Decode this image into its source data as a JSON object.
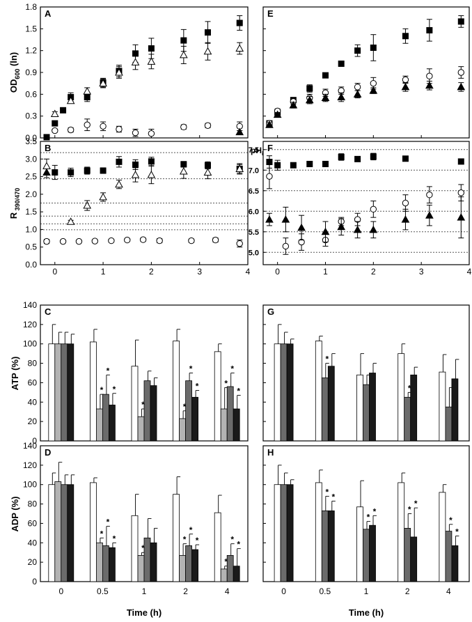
{
  "chart_data": [
    {
      "id": "A",
      "type": "scatter",
      "panel_label": "A",
      "ylabel": "OD600 (ln)",
      "ylim": [
        0,
        1.8
      ],
      "xlim": [
        -0.3,
        4
      ],
      "yticks": [
        "0.0",
        "0.3",
        "0.6",
        "0.9",
        "1.2",
        "1.5",
        "1.8"
      ],
      "series": [
        {
          "name": "filled square",
          "marker": "square",
          "filled": true,
          "x": [
            -0.17,
            0,
            0.17,
            0.33,
            0.67,
            1,
            1.33,
            1.67,
            2,
            2.67,
            3.17,
            3.83
          ],
          "y": [
            0.01,
            0.2,
            0.38,
            0.56,
            0.56,
            0.76,
            0.92,
            1.16,
            1.23,
            1.34,
            1.45,
            1.58
          ],
          "err": [
            0.01,
            0.02,
            0.03,
            0.06,
            0.06,
            0.06,
            0.08,
            0.12,
            0.14,
            0.15,
            0.15,
            0.1
          ]
        },
        {
          "name": "open triangle",
          "marker": "triangle",
          "filled": false,
          "x": [
            0,
            0.33,
            0.67,
            1,
            1.33,
            1.67,
            2,
            2.67,
            3.17,
            3.83
          ],
          "y": [
            0.33,
            0.51,
            0.64,
            0.75,
            0.9,
            1.04,
            1.05,
            1.14,
            1.19,
            1.23
          ],
          "err": [
            0.03,
            0.03,
            0.05,
            0.06,
            0.08,
            0.1,
            0.1,
            0.12,
            0.12,
            0.08
          ]
        },
        {
          "name": "open circle",
          "marker": "circle",
          "filled": false,
          "x": [
            0,
            0.33,
            0.67,
            1,
            1.33,
            1.67,
            2,
            2.67,
            3.17,
            3.83
          ],
          "y": [
            0.1,
            0.11,
            0.18,
            0.16,
            0.12,
            0.07,
            0.06,
            0.15,
            0.17,
            0.16
          ],
          "err": [
            0.02,
            0.03,
            0.08,
            0.06,
            0.04,
            0.05,
            0.06,
            0.03,
            0.03,
            0.06
          ]
        },
        {
          "name": "filled triangle",
          "marker": "triangle",
          "filled": true,
          "x": [
            3.83
          ],
          "y": [
            0.08
          ],
          "err": [
            0.02
          ]
        }
      ]
    },
    {
      "id": "E",
      "type": "scatter",
      "panel_label": "E",
      "ylabel": "",
      "ylim": [
        0,
        1.8
      ],
      "xlim": [
        -0.3,
        4
      ],
      "yticks": [
        "",
        "",
        "",
        "",
        "",
        "",
        ""
      ],
      "series": [
        {
          "name": "filled square",
          "marker": "square",
          "filled": true,
          "x": [
            -0.17,
            0,
            0.33,
            0.67,
            1,
            1.33,
            1.67,
            2,
            2.67,
            3.17,
            3.83
          ],
          "y": [
            0.2,
            0.35,
            0.52,
            0.68,
            0.86,
            1.02,
            1.2,
            1.24,
            1.4,
            1.48,
            1.6
          ],
          "err": [
            0.03,
            0.03,
            0.03,
            0.05,
            0.03,
            0.03,
            0.08,
            0.18,
            0.1,
            0.15,
            0.08
          ]
        },
        {
          "name": "open circle",
          "marker": "circle",
          "filled": false,
          "x": [
            -0.17,
            0,
            0.33,
            0.67,
            1,
            1.33,
            1.67,
            2,
            2.67,
            3.17,
            3.83
          ],
          "y": [
            0.2,
            0.37,
            0.5,
            0.55,
            0.62,
            0.65,
            0.7,
            0.75,
            0.8,
            0.85,
            0.9
          ],
          "err": [
            0.03,
            0.03,
            0.04,
            0.05,
            0.05,
            0.05,
            0.05,
            0.08,
            0.05,
            0.1,
            0.08
          ]
        },
        {
          "name": "filled triangle",
          "marker": "triangle",
          "filled": true,
          "x": [
            -0.17,
            0,
            0.33,
            0.67,
            1,
            1.33,
            1.67,
            2,
            2.67,
            3.17,
            3.83
          ],
          "y": [
            0.18,
            0.32,
            0.45,
            0.52,
            0.55,
            0.56,
            0.6,
            0.65,
            0.7,
            0.72,
            0.7
          ],
          "err": [
            0.03,
            0.03,
            0.04,
            0.05,
            0.05,
            0.06,
            0.05,
            0.04,
            0.06,
            0.06,
            0.06
          ]
        }
      ]
    },
    {
      "id": "B",
      "type": "scatter",
      "panel_label": "B",
      "ylabel": "R 390/470",
      "ylim": [
        0,
        3.5
      ],
      "xlim": [
        -0.3,
        4
      ],
      "yticks": [
        "0.0",
        "0.5",
        "1.0",
        "1.5",
        "2.0",
        "2.5",
        "3.0",
        "3.5"
      ],
      "xticks": [
        "0",
        "1",
        "2",
        "3",
        "4"
      ],
      "ref_lines": [
        3.18,
        2.44,
        1.75,
        1.38,
        1.16,
        0.99
      ],
      "series": [
        {
          "name": "filled square",
          "marker": "square",
          "filled": true,
          "x": [
            0,
            0.33,
            0.67,
            1,
            1.33,
            1.67,
            2,
            2.67,
            3.17,
            3.83
          ],
          "y": [
            2.62,
            2.62,
            2.67,
            2.67,
            2.92,
            2.84,
            2.93,
            2.85,
            2.82,
            2.72
          ],
          "err": [
            0.2,
            0.12,
            0.1,
            0.08,
            0.15,
            0.14,
            0.12,
            0.08,
            0.1,
            0.12
          ]
        },
        {
          "name": "filled triangle",
          "marker": "triangle",
          "filled": true,
          "x": [
            -0.17
          ],
          "y": [
            2.62
          ],
          "err": [
            0.15
          ]
        },
        {
          "name": "open triangle",
          "marker": "triangle",
          "filled": false,
          "x": [
            -0.17,
            0.33,
            0.67,
            1,
            1.33,
            1.67,
            2,
            2.67,
            3.17,
            3.83
          ],
          "y": [
            2.8,
            1.22,
            1.68,
            1.92,
            2.28,
            2.55,
            2.55,
            2.65,
            2.62,
            2.72
          ],
          "err": [
            0.2,
            0.04,
            0.14,
            0.12,
            0.12,
            0.2,
            0.25,
            0.2,
            0.18,
            0.15
          ]
        },
        {
          "name": "open circle",
          "marker": "circle",
          "filled": false,
          "x": [
            -0.17,
            0.17,
            0.5,
            0.83,
            1.17,
            1.5,
            1.83,
            2.17,
            2.83,
            3.33,
            3.83
          ],
          "y": [
            0.66,
            0.66,
            0.66,
            0.67,
            0.68,
            0.7,
            0.71,
            0.68,
            0.68,
            0.7,
            0.6
          ],
          "err": [
            0.06,
            0.04,
            0.04,
            0.04,
            0.04,
            0.04,
            0.05,
            0.06,
            0.05,
            0.06,
            0.1
          ]
        }
      ]
    },
    {
      "id": "F",
      "type": "scatter",
      "panel_label": "F",
      "ylabel": "pHi",
      "ylim": [
        4.7,
        7.7
      ],
      "xlim": [
        -0.3,
        4
      ],
      "yticks_labels": [
        "5.0",
        "5.5",
        "6.0",
        "6.5",
        "7.0",
        "7.5"
      ],
      "yticks_values": [
        5.0,
        5.5,
        6.0,
        6.5,
        7.0,
        7.5
      ],
      "xticks": [
        "0",
        "1",
        "2",
        "3",
        "4"
      ],
      "series": [
        {
          "name": "filled square",
          "marker": "square",
          "filled": true,
          "x": [
            -0.17,
            0,
            0.33,
            0.67,
            1,
            1.33,
            1.67,
            2,
            2.67,
            3.83
          ],
          "y": [
            7.2,
            7.12,
            7.12,
            7.15,
            7.15,
            7.32,
            7.27,
            7.33,
            7.28,
            7.21
          ],
          "err": [
            0.15,
            0.12,
            0.06,
            0.06,
            0.06,
            0.08,
            0.05,
            0.08,
            0.04,
            0.04
          ]
        },
        {
          "name": "open circle",
          "marker": "circle",
          "filled": false,
          "x": [
            -0.17,
            0.17,
            0.5,
            1,
            1.33,
            1.67,
            2,
            2.67,
            3.17,
            3.83
          ],
          "y": [
            6.85,
            5.15,
            5.25,
            5.3,
            5.75,
            5.8,
            6.05,
            6.2,
            6.4,
            6.45
          ],
          "err": [
            0.3,
            0.2,
            0.2,
            0.15,
            0.1,
            0.15,
            0.2,
            0.2,
            0.2,
            0.2
          ]
        },
        {
          "name": "filled triangle",
          "marker": "triangle",
          "filled": true,
          "x": [
            -0.17,
            0.17,
            0.5,
            1,
            1.33,
            1.67,
            2,
            2.67,
            3.17,
            3.83
          ],
          "y": [
            5.8,
            5.8,
            5.6,
            5.5,
            5.62,
            5.55,
            5.55,
            5.8,
            5.9,
            5.85
          ],
          "err": [
            0.15,
            0.3,
            0.3,
            0.25,
            0.2,
            0.2,
            0.2,
            0.25,
            0.25,
            0.5
          ]
        }
      ]
    },
    {
      "id": "C",
      "type": "bar",
      "panel_label": "C",
      "ylabel": "ATP (%)",
      "ylim": [
        0,
        140
      ],
      "yticks": [
        "0",
        "20",
        "40",
        "60",
        "80",
        "100",
        "120",
        "140"
      ],
      "categories": [
        "0",
        "0.5",
        "1",
        "2",
        "4"
      ],
      "series": [
        {
          "name": "white",
          "values": [
            100,
            102,
            77,
            103,
            92
          ],
          "err": [
            20,
            13,
            27,
            12,
            8
          ],
          "sig": [
            false,
            false,
            false,
            false,
            false
          ]
        },
        {
          "name": "light gray",
          "values": [
            100,
            33,
            25,
            23,
            33
          ],
          "err": [
            12,
            15,
            8,
            8,
            22
          ],
          "sig": [
            false,
            true,
            true,
            true,
            true
          ]
        },
        {
          "name": "dark gray",
          "values": [
            100,
            48,
            62,
            62,
            56
          ],
          "err": [
            12,
            20,
            10,
            8,
            14
          ],
          "sig": [
            false,
            true,
            false,
            true,
            true
          ]
        },
        {
          "name": "black",
          "values": [
            100,
            37,
            57,
            45,
            33
          ],
          "err": [
            10,
            12,
            8,
            7,
            14
          ],
          "sig": [
            false,
            true,
            false,
            true,
            true
          ]
        }
      ]
    },
    {
      "id": "G",
      "type": "bar",
      "panel_label": "G",
      "ylabel": "",
      "ylim": [
        0,
        140
      ],
      "categories": [
        "0",
        "0.5",
        "1",
        "2",
        "4"
      ],
      "series": [
        {
          "name": "white",
          "values": [
            100,
            103,
            68,
            90,
            71
          ],
          "err": [
            20,
            5,
            22,
            10,
            18
          ],
          "sig": [
            false,
            false,
            false,
            false,
            false
          ]
        },
        {
          "name": "dark gray",
          "values": [
            100,
            65,
            58,
            45,
            35
          ],
          "err": [
            12,
            15,
            10,
            5,
            20
          ],
          "sig": [
            false,
            true,
            false,
            true,
            false
          ]
        },
        {
          "name": "black",
          "values": [
            100,
            77,
            70,
            68,
            64
          ],
          "err": [
            5,
            13,
            10,
            8,
            20
          ],
          "sig": [
            false,
            false,
            false,
            false,
            false
          ]
        }
      ]
    },
    {
      "id": "D",
      "type": "bar",
      "panel_label": "D",
      "ylabel": "ADP (%)",
      "ylim": [
        0,
        140
      ],
      "yticks": [
        "0",
        "20",
        "40",
        "60",
        "80",
        "100",
        "120",
        "140"
      ],
      "categories": [
        "0",
        "0.5",
        "1",
        "2",
        "4"
      ],
      "xlabel": "Time (h)",
      "series": [
        {
          "name": "white",
          "values": [
            100,
            102,
            68,
            90,
            71
          ],
          "err": [
            12,
            5,
            22,
            18,
            18
          ],
          "sig": [
            false,
            false,
            false,
            false,
            false
          ]
        },
        {
          "name": "light gray",
          "values": [
            103,
            40,
            27,
            27,
            13
          ],
          "err": [
            20,
            5,
            3,
            12,
            3
          ],
          "sig": [
            false,
            true,
            true,
            true,
            true
          ]
        },
        {
          "name": "dark gray",
          "values": [
            100,
            37,
            45,
            37,
            27
          ],
          "err": [
            10,
            20,
            20,
            12,
            12
          ],
          "sig": [
            false,
            true,
            false,
            true,
            true
          ]
        },
        {
          "name": "black",
          "values": [
            100,
            35,
            40,
            33,
            16
          ],
          "err": [
            10,
            5,
            15,
            5,
            18
          ],
          "sig": [
            false,
            true,
            false,
            true,
            true
          ]
        }
      ]
    },
    {
      "id": "H",
      "type": "bar",
      "panel_label": "H",
      "ylabel": "",
      "ylim": [
        0,
        140
      ],
      "categories": [
        "0",
        "0.5",
        "1",
        "2",
        "4"
      ],
      "xlabel": "Time (h)",
      "series": [
        {
          "name": "white",
          "values": [
            100,
            102,
            77,
            102,
            92
          ],
          "err": [
            20,
            13,
            27,
            10,
            8
          ],
          "sig": [
            false,
            false,
            false,
            false,
            false
          ]
        },
        {
          "name": "dark gray",
          "values": [
            100,
            73,
            54,
            55,
            52
          ],
          "err": [
            12,
            15,
            8,
            15,
            7
          ],
          "sig": [
            false,
            true,
            true,
            true,
            true
          ]
        },
        {
          "name": "black",
          "values": [
            100,
            73,
            58,
            46,
            37
          ],
          "err": [
            5,
            10,
            10,
            30,
            10
          ],
          "sig": [
            false,
            true,
            true,
            true,
            true
          ]
        }
      ]
    }
  ]
}
